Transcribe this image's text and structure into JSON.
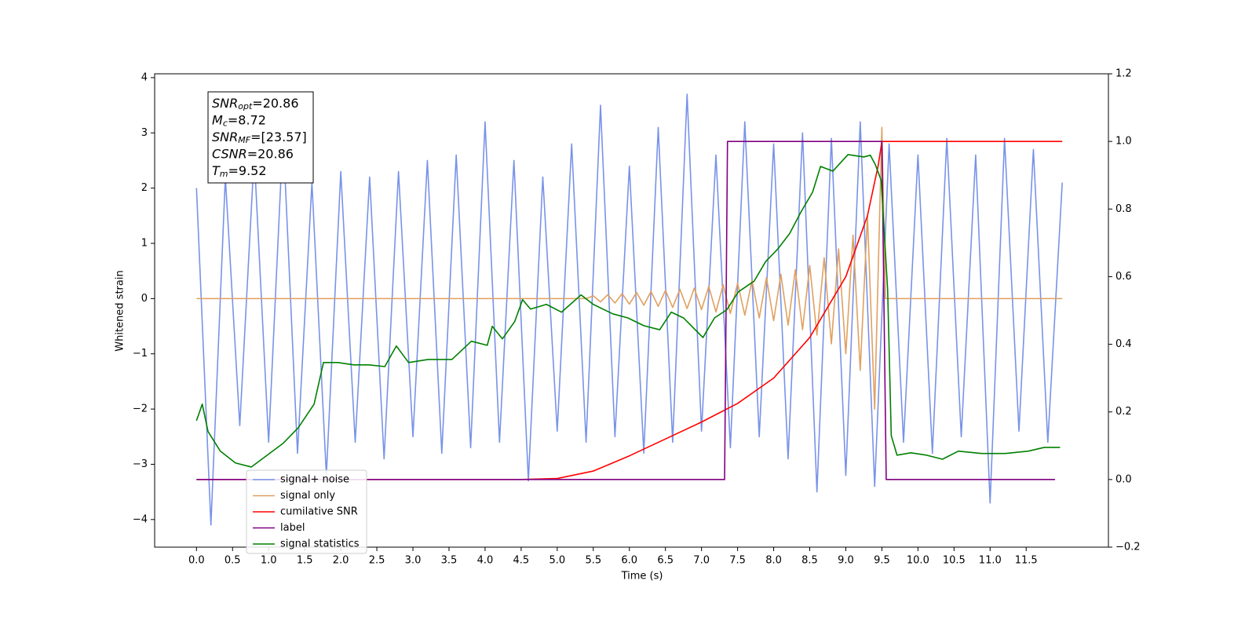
{
  "chart_data": {
    "type": "line",
    "xlabel": "Time (s)",
    "ylabel": "Whitened strain",
    "xlim": [
      -0.58,
      12.64
    ],
    "ylim": [
      -4.5,
      4.07
    ],
    "y2lim": [
      -0.2,
      1.2
    ],
    "xticks": [
      {
        "value": 0,
        "label": "0.0"
      },
      0.5,
      {
        "value": 1,
        "label": "1.0"
      },
      1.5,
      {
        "value": 2,
        "label": "2.0"
      },
      2.5,
      {
        "value": 3,
        "label": "3.0"
      },
      3.5,
      {
        "value": 4,
        "label": "4.0"
      },
      4.5,
      {
        "value": 5,
        "label": "5.0"
      },
      5.5,
      {
        "value": 6,
        "label": "6.0"
      },
      6.5,
      {
        "value": 7,
        "label": "7.0"
      },
      7.5,
      {
        "value": 8,
        "label": "8.0"
      },
      8.5,
      {
        "value": 9,
        "label": "9.0"
      },
      9.5,
      {
        "value": 10,
        "label": "10.0"
      },
      10.5,
      {
        "value": 11,
        "label": "11.0"
      },
      11.5
    ],
    "yticks": [
      {
        "value": -4,
        "label": "−4"
      },
      {
        "value": -3,
        "label": "−3"
      },
      {
        "value": -2,
        "label": "−2"
      },
      {
        "value": -1,
        "label": "−1"
      },
      0,
      1,
      2,
      3,
      4
    ],
    "y2ticks": [
      {
        "value": -0.2,
        "label": "−0.2"
      },
      {
        "value": 0,
        "label": "0.0"
      },
      0.2,
      0.4,
      0.6,
      0.8,
      {
        "value": 1,
        "label": "1.0"
      },
      1.2
    ],
    "legend": "lower left",
    "annotation": [
      {
        "base": "SNR",
        "sub": "opt",
        "rest": "=20.86"
      },
      {
        "base": "M",
        "sub": "c",
        "rest": "=8.72"
      },
      {
        "base": "SNR",
        "sub": "MF",
        "rest": "=[23.57]"
      },
      {
        "base": "CSNR",
        "rest": "=20.86"
      },
      {
        "base": "T",
        "sub": "m",
        "rest": "=9.52"
      }
    ],
    "series": [
      {
        "name": "signal+ noise",
        "color": "#7893e8",
        "x": [
          0,
          0.2,
          0.4,
          0.6,
          0.8,
          1,
          1.2,
          1.4,
          1.6,
          1.8,
          2,
          2.2,
          2.4,
          2.6,
          2.8,
          3,
          3.2,
          3.4,
          3.6,
          3.8,
          4,
          4.2,
          4.4,
          4.6,
          4.8,
          5,
          5.2,
          5.4,
          5.6,
          5.8,
          6,
          6.2,
          6.4,
          6.6,
          6.8,
          7,
          7.2,
          7.4,
          7.6,
          7.8,
          8,
          8.2,
          8.4,
          8.6,
          8.8,
          9,
          9.2,
          9.4,
          9.6,
          9.8,
          10,
          10.2,
          10.4,
          10.6,
          10.8,
          11,
          11.2,
          11.4,
          11.6,
          11.8,
          12
        ],
        "values": [
          2.0,
          -4.1,
          2.2,
          -2.3,
          2.6,
          -2.6,
          3.0,
          -2.8,
          2.1,
          -3.2,
          2.3,
          -2.6,
          2.2,
          -2.9,
          2.3,
          -2.5,
          2.5,
          -2.8,
          2.6,
          -2.7,
          3.2,
          -2.6,
          2.5,
          -3.3,
          2.2,
          -2.4,
          2.8,
          -2.6,
          3.5,
          -2.5,
          2.4,
          -2.8,
          3.1,
          -2.6,
          3.7,
          -2.4,
          2.6,
          -2.7,
          3.2,
          -2.5,
          2.8,
          -2.9,
          3.0,
          -3.5,
          2.9,
          -3.2,
          3.2,
          -3.4,
          2.8,
          -2.6,
          2.6,
          -2.8,
          2.9,
          -2.5,
          2.6,
          -3.7,
          2.9,
          -2.4,
          2.7,
          -2.6,
          2.1
        ]
      },
      {
        "name": "signal only",
        "color": "#e0a060",
        "x": [
          0,
          5.4,
          5.5,
          5.6,
          5.7,
          5.8,
          5.9,
          6,
          6.1,
          6.2,
          6.3,
          6.4,
          6.5,
          6.6,
          6.7,
          6.8,
          6.9,
          7,
          7.1,
          7.2,
          7.3,
          7.4,
          7.5,
          7.6,
          7.7,
          7.8,
          7.9,
          8,
          8.1,
          8.2,
          8.3,
          8.4,
          8.5,
          8.6,
          8.7,
          8.8,
          8.9,
          9,
          9.1,
          9.2,
          9.3,
          9.4,
          9.5,
          9.55,
          12
        ],
        "values": [
          0,
          0,
          0.05,
          -0.06,
          0.07,
          -0.08,
          0.09,
          -0.1,
          0.11,
          -0.12,
          0.13,
          -0.14,
          0.15,
          -0.16,
          0.17,
          -0.18,
          0.19,
          -0.2,
          0.22,
          -0.24,
          0.25,
          -0.27,
          0.28,
          -0.3,
          0.33,
          -0.35,
          0.38,
          -0.4,
          0.44,
          -0.48,
          0.52,
          -0.56,
          0.6,
          -0.66,
          0.74,
          -0.82,
          0.9,
          -1.0,
          1.15,
          -1.3,
          1.5,
          -2.0,
          3.1,
          0,
          0
        ]
      },
      {
        "name": "cumilative SNR",
        "color": "#ff0000",
        "axis": "y2",
        "x": [
          0,
          4.5,
          5,
          5.5,
          6,
          6.5,
          7,
          7.5,
          8,
          8.5,
          9,
          9.3,
          9.45,
          9.5,
          12
        ],
        "values": [
          0,
          0,
          0.003,
          0.025,
          0.07,
          0.12,
          0.17,
          0.225,
          0.3,
          0.42,
          0.6,
          0.78,
          0.93,
          1.0,
          1.0
        ]
      },
      {
        "name": "label",
        "color": "#800080",
        "axis": "y2",
        "x": [
          0,
          7.32,
          7.36,
          9.5,
          9.56,
          11.9
        ],
        "values": [
          0,
          0,
          1,
          1,
          0,
          0
        ]
      },
      {
        "name": "signal statistics",
        "color": "#008000",
        "axis": "y2",
        "x": [
          0,
          0.08,
          0.16,
          0.33,
          0.54,
          0.76,
          0.98,
          1.2,
          1.41,
          1.63,
          1.76,
          1.96,
          2.18,
          2.39,
          2.61,
          2.77,
          2.94,
          3.21,
          3.54,
          3.81,
          4.03,
          4.1,
          4.24,
          4.41,
          4.52,
          4.63,
          4.85,
          5.06,
          5.33,
          5.5,
          5.77,
          5.98,
          6.2,
          6.42,
          6.58,
          6.75,
          7.02,
          7.18,
          7.35,
          7.51,
          7.73,
          7.89,
          8.05,
          8.22,
          8.38,
          8.54,
          8.65,
          8.82,
          9.03,
          9.25,
          9.34,
          9.41,
          9.49,
          9.58,
          9.63,
          9.71,
          9.9,
          10.12,
          10.34,
          10.56,
          10.88,
          11.21,
          11.53,
          11.75,
          11.97
        ],
        "values": [
          0.174,
          0.223,
          0.142,
          0.084,
          0.049,
          0.037,
          0.072,
          0.107,
          0.153,
          0.223,
          0.346,
          0.346,
          0.339,
          0.339,
          0.334,
          0.395,
          0.346,
          0.355,
          0.355,
          0.409,
          0.397,
          0.453,
          0.416,
          0.467,
          0.532,
          0.504,
          0.518,
          0.495,
          0.546,
          0.518,
          0.49,
          0.478,
          0.455,
          0.443,
          0.495,
          0.478,
          0.42,
          0.478,
          0.502,
          0.555,
          0.587,
          0.645,
          0.68,
          0.727,
          0.792,
          0.85,
          0.926,
          0.912,
          0.961,
          0.954,
          0.959,
          0.931,
          0.885,
          0.56,
          0.13,
          0.072,
          0.079,
          0.072,
          0.06,
          0.084,
          0.077,
          0.077,
          0.084,
          0.095,
          0.095
        ]
      }
    ]
  }
}
